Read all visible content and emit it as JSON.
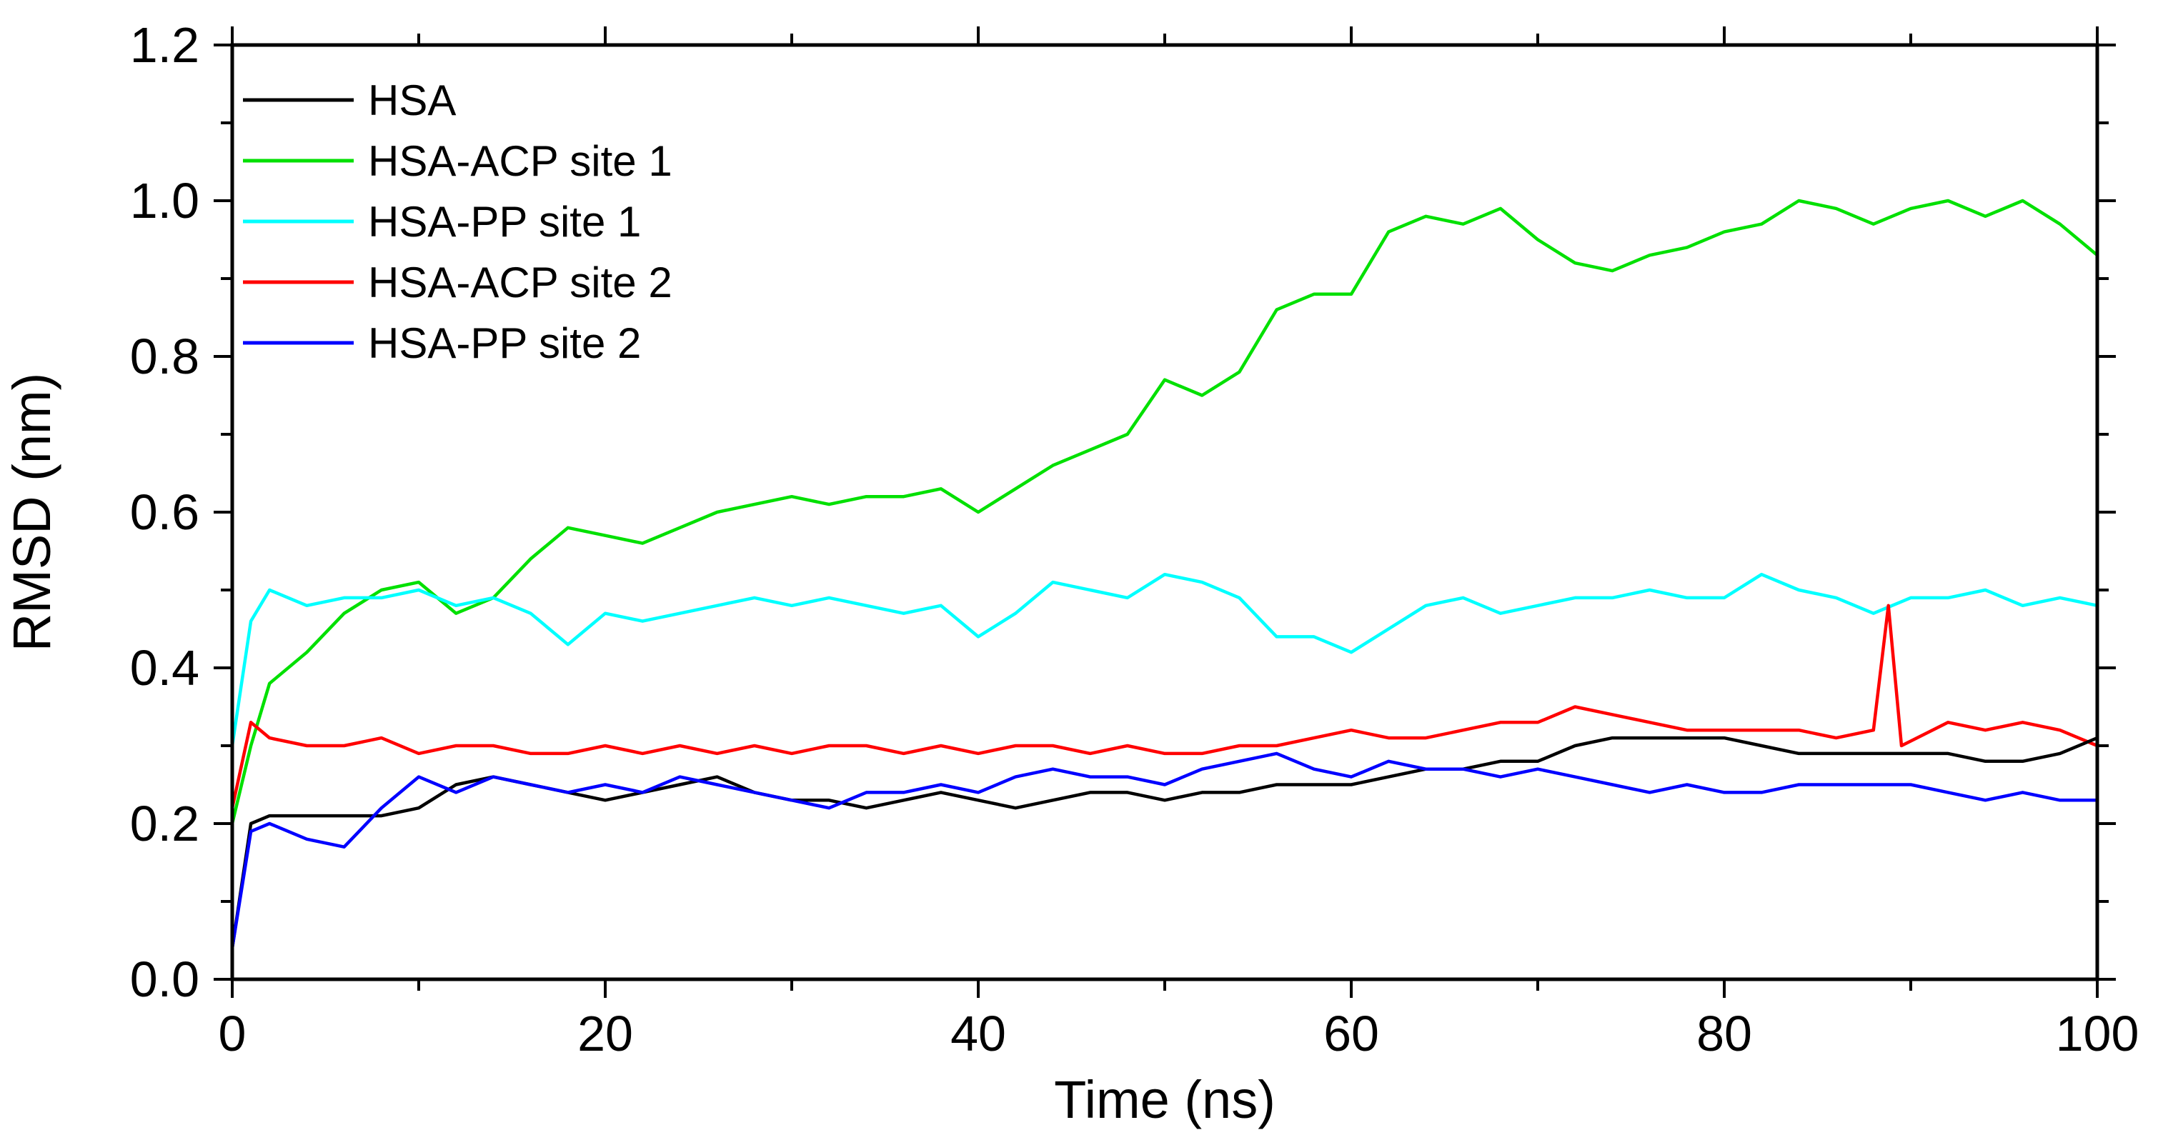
{
  "chart_data": {
    "type": "line",
    "title": "",
    "xlabel": "Time (ns)",
    "ylabel": "RMSD (nm)",
    "xlim": [
      0,
      100
    ],
    "ylim": [
      0.0,
      1.2
    ],
    "x_ticks": [
      0,
      20,
      40,
      60,
      80,
      100
    ],
    "y_ticks": [
      0.0,
      0.2,
      0.4,
      0.6,
      0.8,
      1.0,
      1.2
    ],
    "x_tick_labels": [
      "0",
      "20",
      "40",
      "60",
      "80",
      "100"
    ],
    "y_tick_labels": [
      "0.0",
      "0.2",
      "0.4",
      "0.6",
      "0.8",
      "1.0",
      "1.2"
    ],
    "grid": false,
    "legend_position": "top-left",
    "series": [
      {
        "name": "HSA",
        "color": "#000000",
        "x": [
          0,
          1,
          2,
          4,
          6,
          8,
          10,
          12,
          14,
          16,
          18,
          20,
          22,
          24,
          26,
          28,
          30,
          32,
          34,
          36,
          38,
          40,
          42,
          44,
          46,
          48,
          50,
          52,
          54,
          56,
          58,
          60,
          62,
          64,
          66,
          68,
          70,
          72,
          74,
          76,
          78,
          80,
          82,
          84,
          86,
          88,
          90,
          92,
          94,
          96,
          98,
          100
        ],
        "y": [
          0.04,
          0.2,
          0.21,
          0.21,
          0.21,
          0.21,
          0.22,
          0.25,
          0.26,
          0.25,
          0.24,
          0.23,
          0.24,
          0.25,
          0.26,
          0.24,
          0.23,
          0.23,
          0.22,
          0.23,
          0.24,
          0.23,
          0.22,
          0.23,
          0.24,
          0.24,
          0.23,
          0.24,
          0.24,
          0.25,
          0.25,
          0.25,
          0.26,
          0.27,
          0.27,
          0.28,
          0.28,
          0.3,
          0.31,
          0.31,
          0.31,
          0.31,
          0.3,
          0.29,
          0.29,
          0.29,
          0.29,
          0.29,
          0.28,
          0.28,
          0.29,
          0.31
        ]
      },
      {
        "name": "HSA-ACP site 1",
        "color": "#00e000",
        "x": [
          0,
          1,
          2,
          4,
          6,
          8,
          10,
          12,
          14,
          16,
          18,
          20,
          22,
          24,
          26,
          28,
          30,
          32,
          34,
          36,
          38,
          40,
          42,
          44,
          46,
          48,
          50,
          52,
          54,
          56,
          58,
          60,
          62,
          64,
          66,
          68,
          70,
          72,
          74,
          76,
          78,
          80,
          82,
          84,
          86,
          88,
          90,
          92,
          94,
          96,
          98,
          100
        ],
        "y": [
          0.2,
          0.3,
          0.38,
          0.42,
          0.47,
          0.5,
          0.51,
          0.47,
          0.49,
          0.54,
          0.58,
          0.57,
          0.56,
          0.58,
          0.6,
          0.61,
          0.62,
          0.61,
          0.62,
          0.62,
          0.63,
          0.6,
          0.63,
          0.66,
          0.68,
          0.7,
          0.77,
          0.75,
          0.78,
          0.86,
          0.88,
          0.88,
          0.96,
          0.98,
          0.97,
          0.99,
          0.95,
          0.92,
          0.91,
          0.93,
          0.94,
          0.96,
          0.97,
          1.0,
          0.99,
          0.97,
          0.99,
          1.0,
          0.98,
          1.0,
          0.97,
          0.93
        ]
      },
      {
        "name": "HSA-PP site 1",
        "color": "#00ffff",
        "x": [
          0,
          1,
          2,
          4,
          6,
          8,
          10,
          12,
          14,
          16,
          18,
          20,
          22,
          24,
          26,
          28,
          30,
          32,
          34,
          36,
          38,
          40,
          42,
          44,
          46,
          48,
          50,
          52,
          54,
          56,
          58,
          60,
          62,
          64,
          66,
          68,
          70,
          72,
          74,
          76,
          78,
          80,
          82,
          84,
          86,
          88,
          90,
          92,
          94,
          96,
          98,
          100
        ],
        "y": [
          0.3,
          0.46,
          0.5,
          0.48,
          0.49,
          0.49,
          0.5,
          0.48,
          0.49,
          0.47,
          0.43,
          0.47,
          0.46,
          0.47,
          0.48,
          0.49,
          0.48,
          0.49,
          0.48,
          0.47,
          0.48,
          0.44,
          0.47,
          0.51,
          0.5,
          0.49,
          0.52,
          0.51,
          0.49,
          0.44,
          0.44,
          0.42,
          0.45,
          0.48,
          0.49,
          0.47,
          0.48,
          0.49,
          0.49,
          0.5,
          0.49,
          0.49,
          0.52,
          0.5,
          0.49,
          0.47,
          0.49,
          0.49,
          0.5,
          0.48,
          0.49,
          0.48
        ]
      },
      {
        "name": "HSA-ACP site 2",
        "color": "#ff0000",
        "x": [
          0,
          1,
          2,
          4,
          6,
          8,
          10,
          12,
          14,
          16,
          18,
          20,
          22,
          24,
          26,
          28,
          30,
          32,
          34,
          36,
          38,
          40,
          42,
          44,
          46,
          48,
          50,
          52,
          54,
          56,
          58,
          60,
          62,
          64,
          66,
          68,
          70,
          72,
          74,
          76,
          78,
          80,
          82,
          84,
          86,
          88,
          88.8,
          89.5,
          92,
          94,
          96,
          98,
          100
        ],
        "y": [
          0.22,
          0.33,
          0.31,
          0.3,
          0.3,
          0.31,
          0.29,
          0.3,
          0.3,
          0.29,
          0.29,
          0.3,
          0.29,
          0.3,
          0.29,
          0.3,
          0.29,
          0.3,
          0.3,
          0.29,
          0.3,
          0.29,
          0.3,
          0.3,
          0.29,
          0.3,
          0.29,
          0.29,
          0.3,
          0.3,
          0.31,
          0.32,
          0.31,
          0.31,
          0.32,
          0.33,
          0.33,
          0.35,
          0.34,
          0.33,
          0.32,
          0.32,
          0.32,
          0.32,
          0.31,
          0.32,
          0.48,
          0.3,
          0.33,
          0.32,
          0.33,
          0.32,
          0.3
        ]
      },
      {
        "name": "HSA-PP site 2",
        "color": "#0000ff",
        "x": [
          0,
          1,
          2,
          4,
          6,
          8,
          10,
          12,
          14,
          16,
          18,
          20,
          22,
          24,
          26,
          28,
          30,
          32,
          34,
          36,
          38,
          40,
          42,
          44,
          46,
          48,
          50,
          52,
          54,
          56,
          58,
          60,
          62,
          64,
          66,
          68,
          70,
          72,
          74,
          76,
          78,
          80,
          82,
          84,
          86,
          88,
          90,
          92,
          94,
          96,
          98,
          100
        ],
        "y": [
          0.04,
          0.19,
          0.2,
          0.18,
          0.17,
          0.22,
          0.26,
          0.24,
          0.26,
          0.25,
          0.24,
          0.25,
          0.24,
          0.26,
          0.25,
          0.24,
          0.23,
          0.22,
          0.24,
          0.24,
          0.25,
          0.24,
          0.26,
          0.27,
          0.26,
          0.26,
          0.25,
          0.27,
          0.28,
          0.29,
          0.27,
          0.26,
          0.28,
          0.27,
          0.27,
          0.26,
          0.27,
          0.26,
          0.25,
          0.24,
          0.25,
          0.24,
          0.24,
          0.25,
          0.25,
          0.25,
          0.25,
          0.24,
          0.23,
          0.24,
          0.23,
          0.23
        ]
      }
    ]
  }
}
